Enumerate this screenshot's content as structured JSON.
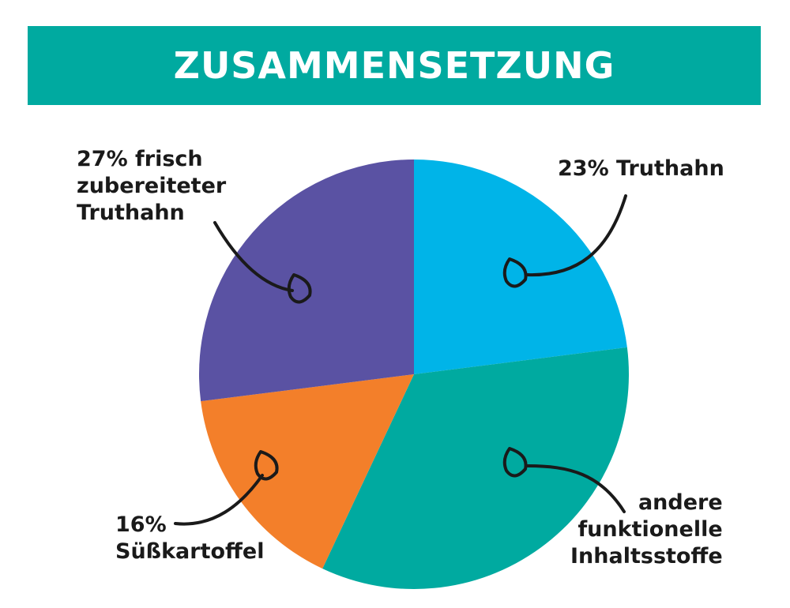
{
  "header": {
    "title": "ZUSAMMENSETZUNG"
  },
  "chart_data": {
    "type": "pie",
    "title": "ZUSAMMENSETZUNG",
    "slices": [
      {
        "value": 23,
        "color": "#00b4e8",
        "label_lines": [
          "23% Truthahn"
        ]
      },
      {
        "value": 34,
        "color": "#00aaa0",
        "label_lines": [
          "andere",
          "funktionelle",
          "Inhaltsstoffe"
        ]
      },
      {
        "value": 16,
        "color": "#f37f2a",
        "label_lines": [
          "16%",
          "Süßkartoffel"
        ]
      },
      {
        "value": 27,
        "color": "#5a52a3",
        "label_lines": [
          "27% frisch",
          "zubereiteter",
          "Truthahn"
        ]
      }
    ],
    "start_direction": "12 o'clock",
    "direction": "clockwise"
  }
}
